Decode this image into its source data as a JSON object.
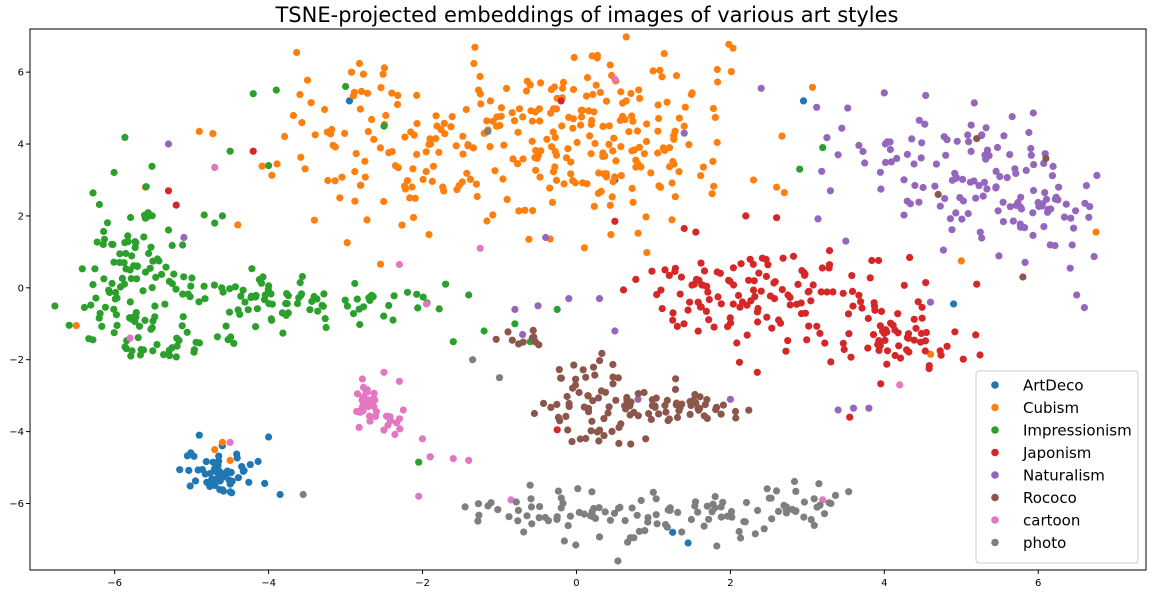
{
  "chart_data": {
    "type": "scatter",
    "title": "TSNE-projected embeddings of images of various art styles",
    "xlabel": "",
    "ylabel": "",
    "xlim": [
      -7.1,
      7.4
    ],
    "ylim": [
      -7.85,
      7.2
    ],
    "xticks": [
      -6,
      -4,
      -2,
      0,
      2,
      4,
      6
    ],
    "yticks": [
      -6,
      -4,
      -2,
      0,
      2,
      4,
      6
    ],
    "grid": false,
    "legend_position": "lower-right",
    "series": [
      {
        "name": "ArtDeco",
        "color": "#1f77b4",
        "clusters": [
          {
            "cx": -4.6,
            "cy": -5.2,
            "sx": 0.25,
            "sy": 0.3,
            "n": 55
          }
        ],
        "points": [
          [
            -4.9,
            -4.1
          ],
          [
            -4.0,
            -4.15
          ],
          [
            -3.85,
            -5.75
          ],
          [
            -2.95,
            5.2
          ],
          [
            2.95,
            5.2
          ],
          [
            1.25,
            -6.8
          ],
          [
            0.5,
            3.0
          ],
          [
            4.9,
            -0.45
          ],
          [
            1.45,
            -7.1
          ]
        ]
      },
      {
        "name": "Cubism",
        "color": "#ff7f0e",
        "clusters": [
          {
            "cx": -1.8,
            "cy": 4.0,
            "sx": 1.1,
            "sy": 1.3,
            "n": 150
          },
          {
            "cx": 0.3,
            "cy": 4.5,
            "sx": 0.8,
            "sy": 1.1,
            "n": 150
          },
          {
            "cx": 0.9,
            "cy": 3.0,
            "sx": 0.4,
            "sy": 0.6,
            "n": 25
          }
        ],
        "points": [
          [
            -6.5,
            -1.05
          ],
          [
            -4.4,
            1.75
          ],
          [
            -4.5,
            -4.8
          ],
          [
            -4.7,
            -4.5
          ],
          [
            -4.6,
            -4.3
          ],
          [
            2.3,
            3.0
          ],
          [
            2.6,
            2.8
          ],
          [
            6.75,
            1.55
          ],
          [
            5.0,
            0.75
          ],
          [
            4.6,
            -1.85
          ],
          [
            2.7,
            2.65
          ],
          [
            -4.9,
            4.35
          ],
          [
            -5.6,
            2.8
          ],
          [
            1.4,
            4.5
          ],
          [
            1.3,
            5.9
          ]
        ]
      },
      {
        "name": "Impressionism",
        "color": "#2ca02c",
        "clusters": [
          {
            "cx": -5.7,
            "cy": 1.4,
            "sx": 0.35,
            "sy": 1.0,
            "n": 60
          },
          {
            "cx": -6.0,
            "cy": -0.6,
            "sx": 0.4,
            "sy": 0.6,
            "n": 40
          },
          {
            "cx": -4.6,
            "cy": -0.4,
            "sx": 0.7,
            "sy": 0.5,
            "n": 60
          },
          {
            "cx": -3.0,
            "cy": -0.4,
            "sx": 0.7,
            "sy": 0.4,
            "n": 40
          },
          {
            "cx": -5.3,
            "cy": -1.6,
            "sx": 0.4,
            "sy": 0.2,
            "n": 20
          }
        ],
        "points": [
          [
            -1.6,
            -1.5
          ],
          [
            -1.2,
            -1.2
          ],
          [
            -0.6,
            -1.5
          ],
          [
            -0.25,
            -0.6
          ],
          [
            -1.9,
            -4.7
          ],
          [
            -2.05,
            -4.85
          ],
          [
            3.2,
            3.9
          ],
          [
            2.9,
            3.3
          ],
          [
            -1.7,
            0.1
          ],
          [
            -1.4,
            -0.2
          ],
          [
            -0.8,
            -1.0
          ],
          [
            -4.2,
            5.4
          ],
          [
            -3.9,
            5.5
          ],
          [
            -3.0,
            5.6
          ],
          [
            -2.5,
            4.5
          ],
          [
            -4.0,
            3.4
          ],
          [
            -4.5,
            3.8
          ],
          [
            -4.7,
            1.8
          ],
          [
            -4.6,
            2.0
          ]
        ]
      },
      {
        "name": "Japonism",
        "color": "#d62728",
        "clusters": [
          {
            "cx": 2.8,
            "cy": -0.7,
            "sx": 1.0,
            "sy": 0.6,
            "n": 90
          },
          {
            "cx": 2.3,
            "cy": 0.3,
            "sx": 0.7,
            "sy": 0.3,
            "n": 40
          },
          {
            "cx": 4.3,
            "cy": -1.4,
            "sx": 0.45,
            "sy": 0.45,
            "n": 40
          },
          {
            "cx": 1.6,
            "cy": -0.1,
            "sx": 0.3,
            "sy": 0.3,
            "n": 15
          }
        ],
        "points": [
          [
            2.2,
            2.0
          ],
          [
            2.6,
            1.95
          ],
          [
            1.4,
            1.65
          ],
          [
            1.55,
            1.55
          ],
          [
            -0.2,
            5.2
          ],
          [
            -4.2,
            3.8
          ],
          [
            -5.3,
            2.7
          ],
          [
            -5.2,
            2.3
          ],
          [
            3.55,
            -3.6
          ],
          [
            -0.25,
            -3.95
          ],
          [
            2.35,
            -2.35
          ],
          [
            5.2,
            0.1
          ],
          [
            0.5,
            1.85
          ]
        ]
      },
      {
        "name": "Naturalism",
        "color": "#9467bd",
        "clusters": [
          {
            "cx": 4.9,
            "cy": 3.6,
            "sx": 0.75,
            "sy": 0.9,
            "n": 90
          },
          {
            "cx": 5.9,
            "cy": 2.0,
            "sx": 0.5,
            "sy": 0.7,
            "n": 55
          }
        ],
        "points": [
          [
            6.5,
            -0.2
          ],
          [
            6.6,
            -0.55
          ],
          [
            3.3,
            2.7
          ],
          [
            3.4,
            3.7
          ],
          [
            3.4,
            -3.4
          ],
          [
            3.6,
            -3.35
          ],
          [
            3.8,
            -3.35
          ],
          [
            2.4,
            5.55
          ],
          [
            1.4,
            4.3
          ],
          [
            3.5,
            1.3
          ],
          [
            -0.5,
            -0.5
          ],
          [
            -0.8,
            -0.6
          ],
          [
            0.3,
            -0.3
          ],
          [
            -0.1,
            -0.3
          ],
          [
            0.5,
            -1.2
          ],
          [
            -0.7,
            -1.3
          ],
          [
            0.8,
            -3.1
          ],
          [
            2.0,
            -3.1
          ],
          [
            -0.4,
            1.4
          ],
          [
            -5.3,
            4.0
          ],
          [
            -5.1,
            1.4
          ],
          [
            4.6,
            -0.4
          ]
        ]
      },
      {
        "name": "Rococo",
        "color": "#8c564b",
        "clusters": [
          {
            "cx": 0.4,
            "cy": -3.5,
            "sx": 0.4,
            "sy": 0.45,
            "n": 55
          },
          {
            "cx": 1.4,
            "cy": -3.3,
            "sx": 0.4,
            "sy": 0.18,
            "n": 40
          },
          {
            "cx": 0.1,
            "cy": -2.4,
            "sx": 0.2,
            "sy": 0.3,
            "n": 15
          },
          {
            "cx": -0.7,
            "cy": -1.3,
            "sx": 0.2,
            "sy": 0.2,
            "n": 10
          }
        ],
        "points": [
          [
            5.2,
            4.15
          ],
          [
            6.1,
            3.6
          ],
          [
            5.8,
            0.3
          ],
          [
            4.7,
            2.6
          ],
          [
            0.9,
            -4.2
          ]
        ]
      },
      {
        "name": "cartoon",
        "color": "#e377c2",
        "clusters": [
          {
            "cx": -2.7,
            "cy": -3.2,
            "sx": 0.08,
            "sy": 0.25,
            "n": 35
          },
          {
            "cx": -2.45,
            "cy": -3.85,
            "sx": 0.15,
            "sy": 0.18,
            "n": 10
          }
        ],
        "points": [
          [
            -2.5,
            -2.35
          ],
          [
            -2.3,
            -2.6
          ],
          [
            -2.25,
            -3.4
          ],
          [
            -2.0,
            -4.2
          ],
          [
            -1.9,
            -4.7
          ],
          [
            -1.6,
            -4.75
          ],
          [
            -1.4,
            -4.8
          ],
          [
            -2.05,
            -5.8
          ],
          [
            -0.85,
            -5.9
          ],
          [
            -2.3,
            0.65
          ],
          [
            -1.95,
            -0.45
          ],
          [
            -4.5,
            -4.3
          ],
          [
            -5.8,
            -1.4
          ],
          [
            -4.7,
            3.35
          ],
          [
            0.5,
            5.8
          ],
          [
            4.2,
            -2.7
          ],
          [
            3.2,
            -5.9
          ],
          [
            -1.25,
            1.1
          ]
        ]
      },
      {
        "name": "photo",
        "color": "#7f7f7f",
        "clusters": [
          {
            "cx": -0.4,
            "cy": -6.2,
            "sx": 0.5,
            "sy": 0.35,
            "n": 30
          },
          {
            "cx": 0.7,
            "cy": -6.5,
            "sx": 0.6,
            "sy": 0.4,
            "n": 35
          },
          {
            "cx": 1.9,
            "cy": -6.2,
            "sx": 0.6,
            "sy": 0.35,
            "n": 40
          },
          {
            "cx": 2.9,
            "cy": -6.0,
            "sx": 0.25,
            "sy": 0.25,
            "n": 20
          }
        ],
        "points": [
          [
            -3.55,
            -5.75
          ],
          [
            3.15,
            -5.45
          ],
          [
            -1.15,
            4.35
          ],
          [
            -1.35,
            -2.0
          ],
          [
            -1.0,
            -2.5
          ]
        ]
      }
    ]
  }
}
